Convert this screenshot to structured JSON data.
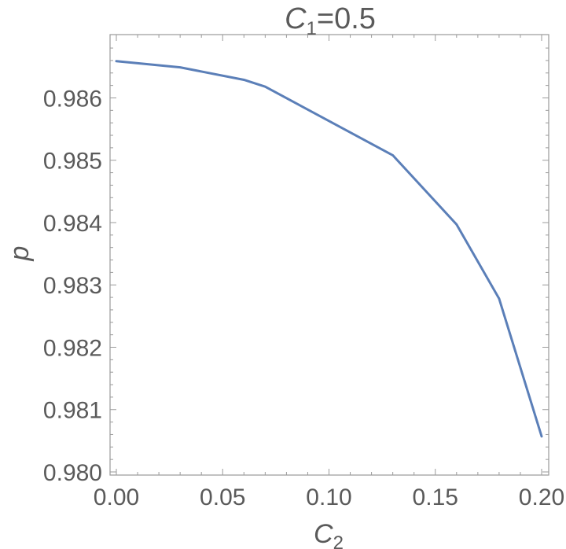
{
  "chart_data": {
    "type": "line",
    "title": {
      "prefix": "C",
      "sub": "1",
      "suffix": "=0.5"
    },
    "xlabel": {
      "main": "C",
      "sub": "2"
    },
    "ylabel": "p",
    "xlim": [
      0.0,
      0.2
    ],
    "ylim": [
      0.98,
      0.9867
    ],
    "x_ticks": [
      {
        "value": 0.0,
        "label": "0.00"
      },
      {
        "value": 0.05,
        "label": "0.05"
      },
      {
        "value": 0.1,
        "label": "0.10"
      },
      {
        "value": 0.15,
        "label": "0.15"
      },
      {
        "value": 0.2,
        "label": "0.20"
      }
    ],
    "y_ticks": [
      {
        "value": 0.98,
        "label": "0.980"
      },
      {
        "value": 0.981,
        "label": "0.981"
      },
      {
        "value": 0.982,
        "label": "0.982"
      },
      {
        "value": 0.983,
        "label": "0.983"
      },
      {
        "value": 0.984,
        "label": "0.984"
      },
      {
        "value": 0.985,
        "label": "0.985"
      },
      {
        "value": 0.986,
        "label": "0.986"
      }
    ],
    "series": [
      {
        "color": "#5b7fb8",
        "x": [
          0.0,
          0.03,
          0.06,
          0.07,
          0.13,
          0.16,
          0.18,
          0.2
        ],
        "y": [
          0.98659,
          0.98649,
          0.98629,
          0.98618,
          0.98508,
          0.98397,
          0.98278,
          0.98057
        ]
      }
    ],
    "grid": false,
    "frame_color": "#9a9a9a",
    "text_color": "#5a5a5a"
  }
}
